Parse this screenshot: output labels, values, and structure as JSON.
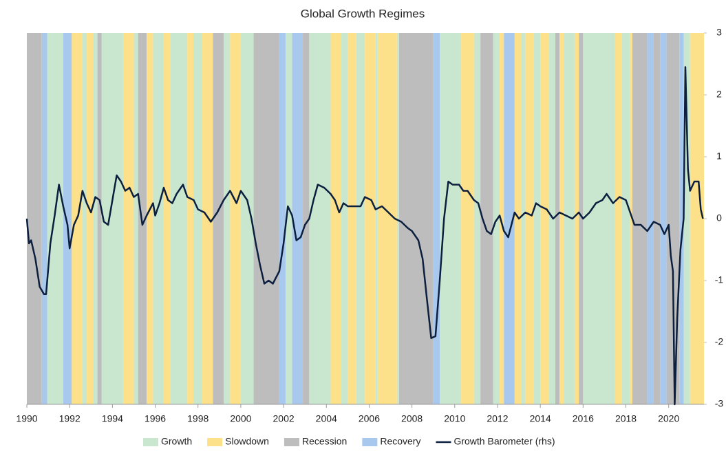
{
  "chart_data": {
    "type": "line",
    "title": "Global Growth Regimes",
    "xlim": [
      1990,
      2021.65
    ],
    "xticks": [
      1990,
      1992,
      1994,
      1996,
      1998,
      2000,
      2002,
      2004,
      2006,
      2008,
      2010,
      2012,
      2014,
      2016,
      2018,
      2020
    ],
    "y2lim": [
      -3,
      3
    ],
    "y2ticks": [
      -3,
      -2,
      -1,
      0,
      1,
      2,
      3
    ],
    "regimes": [
      {
        "name": "Growth",
        "color": "#c9e7cf"
      },
      {
        "name": "Slowdown",
        "color": "#fde08a"
      },
      {
        "name": "Recession",
        "color": "#bdbdbd"
      },
      {
        "name": "Recovery",
        "color": "#a9c8ee"
      }
    ],
    "bands": [
      {
        "start": 1990.0,
        "end": 1990.7,
        "regime": "Recession"
      },
      {
        "start": 1990.7,
        "end": 1990.95,
        "regime": "Recovery"
      },
      {
        "start": 1990.95,
        "end": 1991.7,
        "regime": "Growth"
      },
      {
        "start": 1991.7,
        "end": 1992.1,
        "regime": "Recovery"
      },
      {
        "start": 1992.1,
        "end": 1992.6,
        "regime": "Slowdown"
      },
      {
        "start": 1992.6,
        "end": 1992.8,
        "regime": "Growth"
      },
      {
        "start": 1992.8,
        "end": 1993.1,
        "regime": "Slowdown"
      },
      {
        "start": 1993.1,
        "end": 1993.3,
        "regime": "Growth"
      },
      {
        "start": 1993.3,
        "end": 1993.5,
        "regime": "Recession"
      },
      {
        "start": 1993.5,
        "end": 1994.5,
        "regime": "Growth"
      },
      {
        "start": 1994.5,
        "end": 1995.0,
        "regime": "Slowdown"
      },
      {
        "start": 1995.0,
        "end": 1995.2,
        "regime": "Growth"
      },
      {
        "start": 1995.2,
        "end": 1995.6,
        "regime": "Recession"
      },
      {
        "start": 1995.6,
        "end": 1995.9,
        "regime": "Slowdown"
      },
      {
        "start": 1995.9,
        "end": 1996.4,
        "regime": "Growth"
      },
      {
        "start": 1996.4,
        "end": 1996.7,
        "regime": "Slowdown"
      },
      {
        "start": 1996.7,
        "end": 1997.5,
        "regime": "Growth"
      },
      {
        "start": 1997.5,
        "end": 1997.8,
        "regime": "Slowdown"
      },
      {
        "start": 1997.8,
        "end": 1998.2,
        "regime": "Growth"
      },
      {
        "start": 1998.2,
        "end": 1998.7,
        "regime": "Slowdown"
      },
      {
        "start": 1998.7,
        "end": 1999.2,
        "regime": "Recession"
      },
      {
        "start": 1999.2,
        "end": 1999.5,
        "regime": "Growth"
      },
      {
        "start": 1999.5,
        "end": 2000.0,
        "regime": "Slowdown"
      },
      {
        "start": 2000.0,
        "end": 2000.6,
        "regime": "Growth"
      },
      {
        "start": 2000.6,
        "end": 2001.8,
        "regime": "Recession"
      },
      {
        "start": 2001.8,
        "end": 2002.1,
        "regime": "Recovery"
      },
      {
        "start": 2002.1,
        "end": 2002.4,
        "regime": "Growth"
      },
      {
        "start": 2002.4,
        "end": 2002.9,
        "regime": "Recovery"
      },
      {
        "start": 2002.9,
        "end": 2003.2,
        "regime": "Recession"
      },
      {
        "start": 2003.2,
        "end": 2004.2,
        "regime": "Growth"
      },
      {
        "start": 2004.2,
        "end": 2004.7,
        "regime": "Slowdown"
      },
      {
        "start": 2004.7,
        "end": 2005.0,
        "regime": "Growth"
      },
      {
        "start": 2005.0,
        "end": 2005.4,
        "regime": "Slowdown"
      },
      {
        "start": 2005.4,
        "end": 2005.8,
        "regime": "Growth"
      },
      {
        "start": 2005.8,
        "end": 2006.3,
        "regime": "Slowdown"
      },
      {
        "start": 2006.3,
        "end": 2006.4,
        "regime": "Growth"
      },
      {
        "start": 2006.4,
        "end": 2007.3,
        "regime": "Slowdown"
      },
      {
        "start": 2007.3,
        "end": 2007.4,
        "regime": "Growth"
      },
      {
        "start": 2007.4,
        "end": 2009.0,
        "regime": "Recession"
      },
      {
        "start": 2009.0,
        "end": 2009.3,
        "regime": "Recovery"
      },
      {
        "start": 2009.3,
        "end": 2010.3,
        "regime": "Growth"
      },
      {
        "start": 2010.3,
        "end": 2010.9,
        "regime": "Slowdown"
      },
      {
        "start": 2010.9,
        "end": 2011.2,
        "regime": "Growth"
      },
      {
        "start": 2011.2,
        "end": 2011.8,
        "regime": "Recession"
      },
      {
        "start": 2011.8,
        "end": 2012.1,
        "regime": "Growth"
      },
      {
        "start": 2012.1,
        "end": 2012.3,
        "regime": "Slowdown"
      },
      {
        "start": 2012.3,
        "end": 2012.8,
        "regime": "Recovery"
      },
      {
        "start": 2012.8,
        "end": 2013.1,
        "regime": "Slowdown"
      },
      {
        "start": 2013.1,
        "end": 2013.3,
        "regime": "Growth"
      },
      {
        "start": 2013.3,
        "end": 2013.7,
        "regime": "Slowdown"
      },
      {
        "start": 2013.7,
        "end": 2014.0,
        "regime": "Growth"
      },
      {
        "start": 2014.0,
        "end": 2014.4,
        "regime": "Slowdown"
      },
      {
        "start": 2014.4,
        "end": 2014.7,
        "regime": "Growth"
      },
      {
        "start": 2014.7,
        "end": 2014.9,
        "regime": "Recession"
      },
      {
        "start": 2014.9,
        "end": 2015.1,
        "regime": "Slowdown"
      },
      {
        "start": 2015.1,
        "end": 2015.6,
        "regime": "Growth"
      },
      {
        "start": 2015.6,
        "end": 2015.8,
        "regime": "Slowdown"
      },
      {
        "start": 2015.8,
        "end": 2016.0,
        "regime": "Recession"
      },
      {
        "start": 2016.0,
        "end": 2017.5,
        "regime": "Growth"
      },
      {
        "start": 2017.5,
        "end": 2017.8,
        "regime": "Slowdown"
      },
      {
        "start": 2017.8,
        "end": 2018.2,
        "regime": "Growth"
      },
      {
        "start": 2018.2,
        "end": 2018.3,
        "regime": "Slowdown"
      },
      {
        "start": 2018.3,
        "end": 2019.0,
        "regime": "Recession"
      },
      {
        "start": 2019.0,
        "end": 2019.3,
        "regime": "Recovery"
      },
      {
        "start": 2019.3,
        "end": 2019.6,
        "regime": "Recession"
      },
      {
        "start": 2019.6,
        "end": 2019.9,
        "regime": "Recovery"
      },
      {
        "start": 2019.9,
        "end": 2020.5,
        "regime": "Recession"
      },
      {
        "start": 2020.5,
        "end": 2020.7,
        "regime": "Recovery"
      },
      {
        "start": 2020.7,
        "end": 2021.0,
        "regime": "Growth"
      },
      {
        "start": 2021.0,
        "end": 2021.65,
        "regime": "Slowdown"
      }
    ],
    "x": [
      1990.0,
      1990.1,
      1990.2,
      1990.4,
      1990.6,
      1990.8,
      1990.9,
      1991.1,
      1991.3,
      1991.5,
      1991.7,
      1991.9,
      1992.0,
      1992.2,
      1992.4,
      1992.6,
      1992.8,
      1993.0,
      1993.2,
      1993.4,
      1993.6,
      1993.8,
      1994.0,
      1994.2,
      1994.4,
      1994.6,
      1994.8,
      1995.0,
      1995.2,
      1995.4,
      1995.6,
      1995.9,
      1996.0,
      1996.2,
      1996.4,
      1996.6,
      1996.8,
      1997.0,
      1997.3,
      1997.5,
      1997.8,
      1998.0,
      1998.3,
      1998.6,
      1998.9,
      1999.2,
      1999.5,
      1999.8,
      2000.0,
      2000.3,
      2000.5,
      2000.7,
      2000.9,
      2001.1,
      2001.3,
      2001.5,
      2001.8,
      2002.0,
      2002.2,
      2002.4,
      2002.6,
      2002.8,
      2003.0,
      2003.2,
      2003.4,
      2003.6,
      2003.9,
      2004.2,
      2004.4,
      2004.6,
      2004.8,
      2005.0,
      2005.3,
      2005.6,
      2005.8,
      2006.1,
      2006.3,
      2006.6,
      2006.9,
      2007.2,
      2007.5,
      2007.8,
      2008.0,
      2008.3,
      2008.5,
      2008.7,
      2008.9,
      2009.1,
      2009.3,
      2009.5,
      2009.7,
      2009.9,
      2010.2,
      2010.4,
      2010.6,
      2010.9,
      2011.1,
      2011.3,
      2011.5,
      2011.7,
      2011.9,
      2012.1,
      2012.3,
      2012.5,
      2012.8,
      2013.0,
      2013.3,
      2013.6,
      2013.8,
      2014.0,
      2014.3,
      2014.6,
      2014.9,
      2015.2,
      2015.5,
      2015.8,
      2016.0,
      2016.3,
      2016.6,
      2016.9,
      2017.1,
      2017.4,
      2017.7,
      2018.0,
      2018.2,
      2018.4,
      2018.7,
      2019.0,
      2019.3,
      2019.6,
      2019.8,
      2020.0,
      2020.1,
      2020.2,
      2020.28,
      2020.4,
      2020.55,
      2020.7,
      2020.78,
      2020.9,
      2021.0,
      2021.2,
      2021.4,
      2021.5,
      2021.6
    ],
    "series": [
      {
        "name": "Growth Barometer (rhs)",
        "color": "#0c1f3f",
        "axis": "y2",
        "values": [
          0,
          -0.4,
          -0.35,
          -0.65,
          -1.1,
          -1.22,
          -1.22,
          -0.4,
          0.05,
          0.55,
          0.2,
          -0.1,
          -0.48,
          -0.1,
          0.05,
          0.45,
          0.25,
          0.1,
          0.35,
          0.3,
          -0.05,
          -0.1,
          0.3,
          0.7,
          0.6,
          0.45,
          0.5,
          0.35,
          0.4,
          -0.1,
          0.05,
          0.25,
          0.05,
          0.25,
          0.5,
          0.3,
          0.25,
          0.4,
          0.55,
          0.35,
          0.3,
          0.15,
          0.1,
          -0.05,
          0.1,
          0.3,
          0.45,
          0.25,
          0.45,
          0.3,
          0,
          -0.4,
          -0.75,
          -1.05,
          -1.0,
          -1.05,
          -0.85,
          -0.4,
          0.2,
          0.05,
          -0.35,
          -0.3,
          -0.1,
          0,
          0.3,
          0.55,
          0.5,
          0.4,
          0.3,
          0.1,
          0.25,
          0.2,
          0.2,
          0.2,
          0.35,
          0.3,
          0.15,
          0.2,
          0.1,
          0,
          -0.05,
          -0.15,
          -0.2,
          -0.35,
          -0.65,
          -1.3,
          -1.93,
          -1.9,
          -1.0,
          0,
          0.6,
          0.55,
          0.55,
          0.45,
          0.45,
          0.3,
          0.25,
          0,
          -0.2,
          -0.25,
          -0.05,
          0.05,
          -0.2,
          -0.3,
          0.1,
          0,
          0.1,
          0.05,
          0.25,
          0.2,
          0.15,
          0,
          0.1,
          0.05,
          0,
          0.1,
          0,
          0.1,
          0.25,
          0.3,
          0.4,
          0.25,
          0.35,
          0.3,
          0.1,
          -0.1,
          -0.1,
          -0.2,
          -0.05,
          -0.1,
          -0.25,
          -0.1,
          -0.6,
          -0.85,
          -3.0,
          -1.6,
          -0.5,
          0,
          2.45,
          0.8,
          0.45,
          0.6,
          0.6,
          0.15,
          0
        ]
      }
    ]
  }
}
